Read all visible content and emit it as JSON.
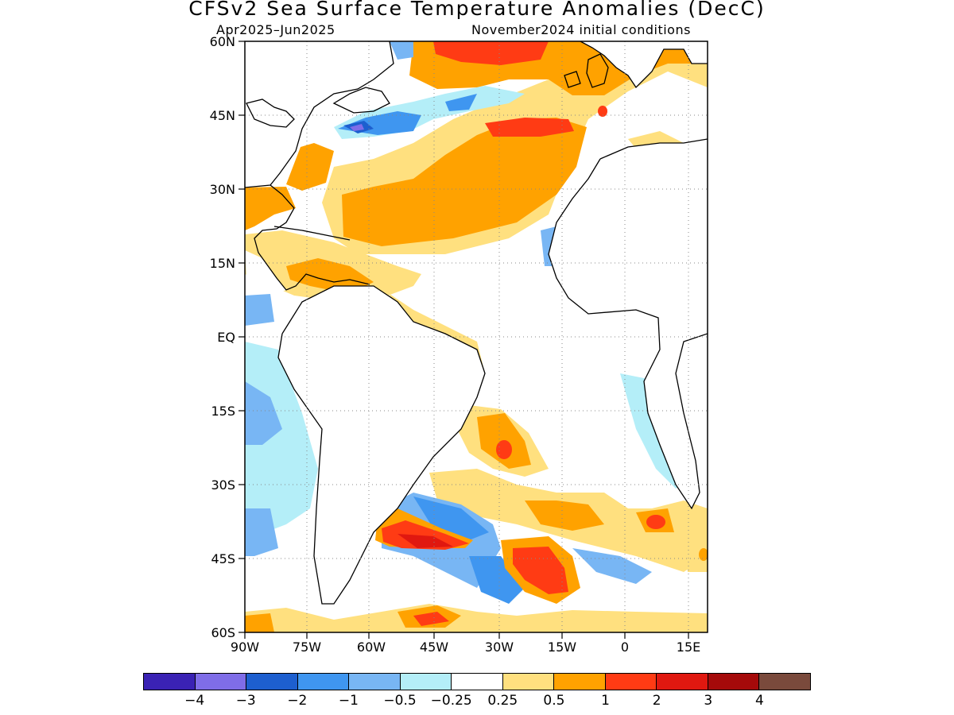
{
  "title": "CFSv2 Sea Surface Temperature Anomalies (DecC)",
  "subtitle_left": "Apr2025–Jun2025",
  "subtitle_right": "November2024 initial conditions",
  "lat_labels": [
    "60N",
    "45N",
    "30N",
    "15N",
    "EQ",
    "15S",
    "30S",
    "45S",
    "60S"
  ],
  "lon_labels": [
    "90W",
    "75W",
    "60W",
    "45W",
    "30W",
    "15W",
    "0",
    "15E"
  ],
  "colorbar": {
    "colors": [
      "#3a22b4",
      "#7f6de8",
      "#1d5fcf",
      "#3f96f0",
      "#78b6f4",
      "#b4eef8",
      "#ffffff",
      "#ffe07f",
      "#ffa200",
      "#ff3b14",
      "#e01810",
      "#a50a0a",
      "#7a4a3c"
    ],
    "labels": [
      "−4",
      "−3",
      "−2",
      "−1",
      "−0.5",
      "−0.25",
      "0.25",
      "0.5",
      "1",
      "2",
      "3",
      "4"
    ]
  }
}
